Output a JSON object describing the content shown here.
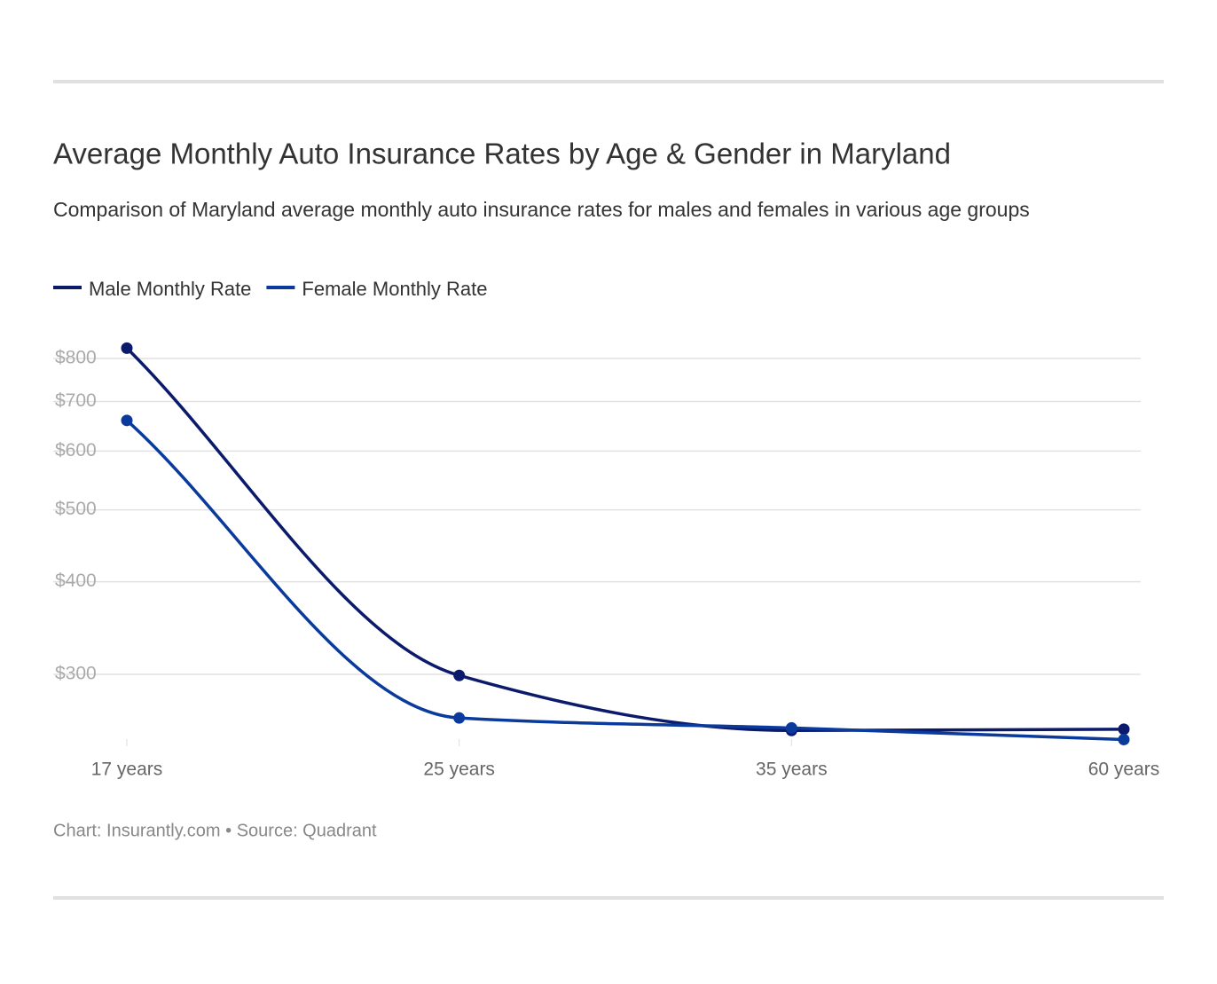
{
  "chart_data": {
    "type": "line",
    "title": "Average Monthly Auto Insurance Rates by Age & Gender in Maryland",
    "subtitle": "Comparison of Maryland average monthly auto insurance rates for males and females in various age groups",
    "categories": [
      "17 years",
      "25 years",
      "35 years",
      "60 years"
    ],
    "series": [
      {
        "name": "Male Monthly Rate",
        "color": "#0b1a6b",
        "values": [
          826,
          299,
          252,
          253
        ]
      },
      {
        "name": "Female Monthly Rate",
        "color": "#0a3a9c",
        "values": [
          660,
          262,
          254,
          245
        ]
      }
    ],
    "ylim": [
      240,
      850
    ],
    "yticks": [
      {
        "value": 300,
        "label": "$300"
      },
      {
        "value": 400,
        "label": "$400"
      },
      {
        "value": 500,
        "label": "$500"
      },
      {
        "value": 600,
        "label": "$600"
      },
      {
        "value": 700,
        "label": "$700"
      },
      {
        "value": 800,
        "label": "$800"
      }
    ],
    "log_scale": true,
    "grid": true,
    "legend": "top-left",
    "footer": "Chart: Insurantly.com • Source: Quadrant"
  }
}
